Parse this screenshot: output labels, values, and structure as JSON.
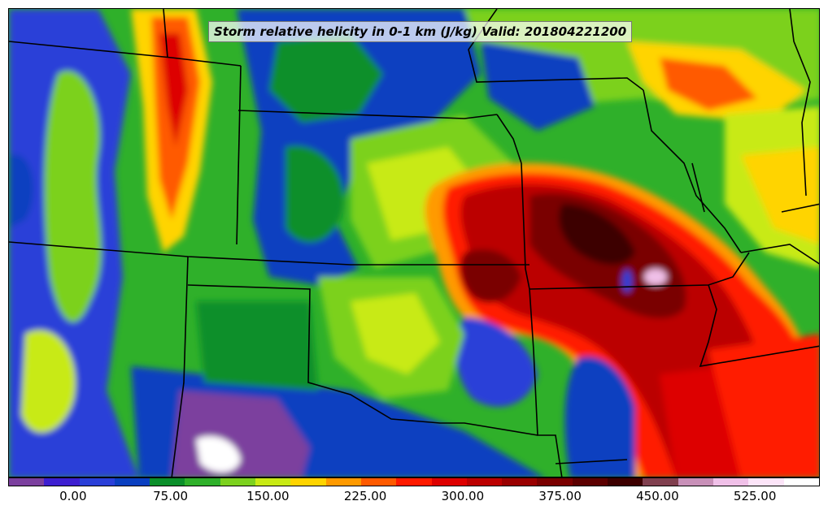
{
  "title": "Storm relative helicity in 0-1 km (J/kg) Valid: 201804221200",
  "colorbar": {
    "colors": [
      "#7b3f9e",
      "#3d1fd0",
      "#2a3fd8",
      "#0a3fc0",
      "#0b8f2a",
      "#2fb02a",
      "#7cd11e",
      "#c8ea14",
      "#ffd400",
      "#ff9a00",
      "#ff5a00",
      "#ff1a00",
      "#dd0000",
      "#bb0000",
      "#990000",
      "#7a0000",
      "#5c0000",
      "#3d0000",
      "#80404f",
      "#c890b8",
      "#f0c0e8",
      "#fce4f8",
      "#ffffff"
    ],
    "min": -50,
    "max": 575,
    "tick_values": [
      0,
      75,
      150,
      225,
      300,
      375,
      450,
      525
    ],
    "tick_labels": [
      "0.00",
      "75.00",
      "150.00",
      "225.00",
      "300.00",
      "375.00",
      "450.00",
      "525.00"
    ]
  },
  "map": {
    "field": "storm relative helicity 0-1 km",
    "background_color": "#2fb02a",
    "boundary_color": "#000000"
  }
}
